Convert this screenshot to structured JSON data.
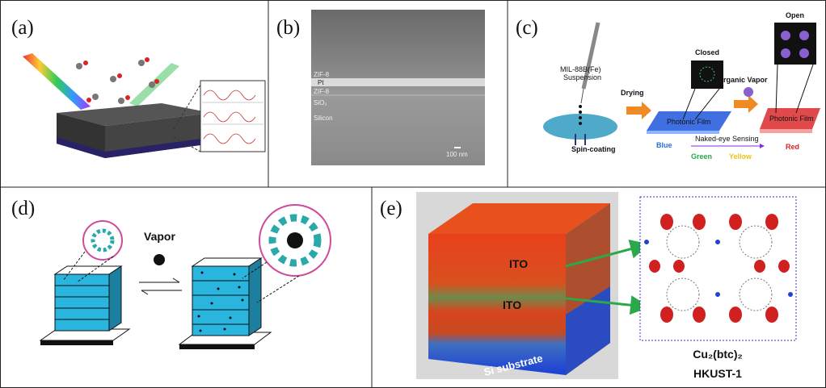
{
  "panels": {
    "a": {
      "label": "(a)"
    },
    "b": {
      "label": "(b)",
      "layers": [
        "ZIF-8",
        "Pt",
        "ZIF-8",
        "SiO₂",
        "Silicon"
      ],
      "scale_bar": "100 nm"
    },
    "c": {
      "label": "(c)",
      "suspension": [
        "MIL-88B(Fe)",
        "Suspension"
      ],
      "spin_coating": "Spin-coating",
      "drying": "Drying",
      "closed": "Closed",
      "organic_vapor": "Organic Vapor",
      "open": "Open",
      "film": [
        "Photonic Film",
        "Photonic Film"
      ],
      "blue": "Blue",
      "sensing": "Naked-eye Sensing",
      "green": "Green",
      "yellow": "Yellow",
      "red": "Red"
    },
    "d": {
      "label": "(d)",
      "vapor": "Vapor"
    },
    "e": {
      "label": "(e)",
      "ito": [
        "ITO",
        "ITO"
      ],
      "substrate": "Si substrate",
      "formula": "Cu₂(btc)₂",
      "name": "HKUST-1"
    }
  }
}
